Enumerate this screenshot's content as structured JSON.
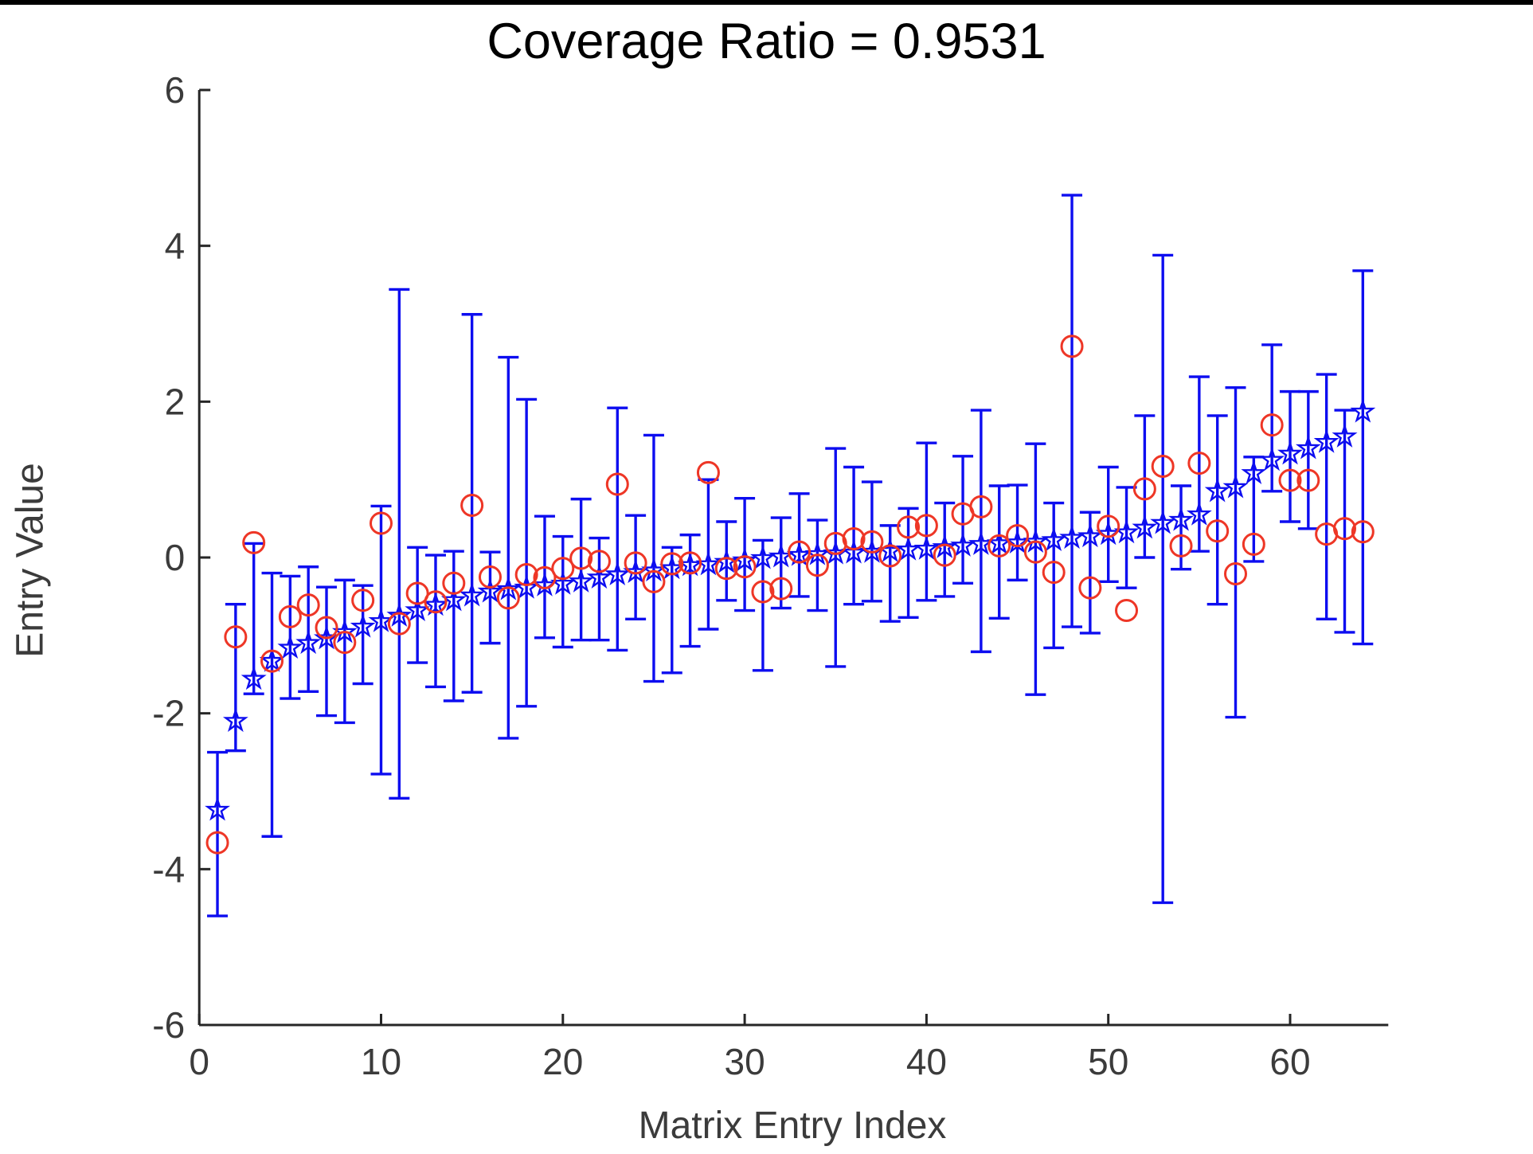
{
  "figure": {
    "title": "Coverage Ratio = 0.9531",
    "coverage_ratio": "0.9531"
  },
  "chart_data": {
    "type": "scatter",
    "subtype": "errorbar-interval-plot",
    "title": "Coverage Ratio = 0.9531",
    "xlabel": "Matrix Entry Index",
    "ylabel": "Entry Value",
    "xlim": [
      0,
      65.4
    ],
    "ylim": [
      -6,
      6
    ],
    "xticks": [
      0,
      10,
      20,
      30,
      40,
      50,
      60
    ],
    "yticks": [
      6,
      4,
      2,
      0,
      -2,
      -4,
      -6
    ],
    "grid": false,
    "legend_position": "none",
    "colors": {
      "interval": "#0d0df0",
      "truth": "#ee3626",
      "axis": "#262626",
      "title": "#000000"
    },
    "series": [
      {
        "name": "sorted-estimates-with-intervals",
        "marker": "pentagram",
        "color": "#0d0df0",
        "x": [
          1,
          2,
          3,
          4,
          5,
          6,
          7,
          8,
          9,
          10,
          11,
          12,
          13,
          14,
          15,
          16,
          17,
          18,
          19,
          20,
          21,
          22,
          23,
          24,
          25,
          26,
          27,
          28,
          29,
          30,
          31,
          32,
          33,
          34,
          35,
          36,
          37,
          38,
          39,
          40,
          41,
          42,
          43,
          44,
          45,
          46,
          47,
          48,
          49,
          50,
          51,
          52,
          53,
          54,
          55,
          56,
          57,
          58,
          59,
          60,
          61,
          62,
          63,
          64
        ],
        "y": [
          -3.24,
          -2.1,
          -1.56,
          -1.33,
          -1.16,
          -1.1,
          -1.04,
          -0.96,
          -0.89,
          -0.82,
          -0.75,
          -0.68,
          -0.61,
          -0.55,
          -0.49,
          -0.44,
          -0.41,
          -0.39,
          -0.36,
          -0.34,
          -0.31,
          -0.26,
          -0.22,
          -0.19,
          -0.17,
          -0.14,
          -0.1,
          -0.09,
          -0.06,
          -0.04,
          -0.01,
          0.01,
          0.03,
          0.04,
          0.05,
          0.06,
          0.07,
          0.08,
          0.1,
          0.11,
          0.13,
          0.15,
          0.17,
          0.18,
          0.19,
          0.2,
          0.22,
          0.25,
          0.27,
          0.3,
          0.32,
          0.38,
          0.44,
          0.48,
          0.55,
          0.85,
          0.9,
          1.08,
          1.25,
          1.33,
          1.4,
          1.48,
          1.55,
          1.87
        ],
        "bar_lower": [
          -4.6,
          -2.48,
          -1.75,
          -3.58,
          -1.81,
          -1.72,
          -2.03,
          -2.12,
          -1.62,
          -2.78,
          -3.09,
          -1.35,
          -1.66,
          -1.84,
          -1.73,
          -1.1,
          -2.32,
          -1.91,
          -1.03,
          -1.15,
          -1.06,
          -1.06,
          -1.19,
          -0.79,
          -1.59,
          -1.48,
          -1.14,
          -0.92,
          -0.55,
          -0.68,
          -1.45,
          -0.65,
          -0.5,
          -0.68,
          -1.4,
          -0.6,
          -0.56,
          -0.82,
          -0.77,
          -0.55,
          -0.5,
          -0.33,
          -1.21,
          -0.78,
          -0.29,
          -1.76,
          -1.16,
          -0.89,
          -0.97,
          -0.31,
          -0.39,
          0.0,
          -4.43,
          -0.15,
          0.08,
          -0.6,
          -2.05,
          -0.05,
          0.85,
          0.46,
          0.37,
          -0.79,
          -0.96,
          -1.11
        ],
        "bar_upper": [
          -2.5,
          -0.6,
          0.18,
          -0.2,
          -0.24,
          -0.12,
          -0.38,
          -0.29,
          -0.36,
          0.66,
          3.44,
          0.13,
          0.03,
          0.08,
          3.12,
          0.07,
          2.57,
          2.03,
          0.53,
          0.27,
          0.75,
          0.25,
          1.92,
          0.54,
          1.57,
          0.13,
          0.29,
          1.0,
          0.46,
          0.76,
          0.22,
          0.51,
          0.82,
          0.48,
          1.4,
          1.16,
          0.97,
          0.41,
          0.63,
          1.47,
          0.7,
          1.3,
          1.89,
          0.92,
          0.93,
          1.46,
          0.7,
          4.65,
          0.58,
          1.16,
          0.9,
          1.82,
          3.88,
          0.92,
          2.32,
          1.82,
          2.18,
          1.29,
          2.73,
          2.13,
          2.13,
          2.35,
          1.89,
          3.68
        ]
      },
      {
        "name": "true-entry-values",
        "marker": "circle",
        "color": "#ee3626",
        "x": [
          1,
          2,
          3,
          4,
          5,
          6,
          7,
          8,
          9,
          10,
          11,
          12,
          13,
          14,
          15,
          16,
          17,
          18,
          19,
          20,
          21,
          22,
          23,
          24,
          25,
          26,
          27,
          28,
          29,
          30,
          31,
          32,
          33,
          34,
          35,
          36,
          37,
          38,
          39,
          40,
          41,
          42,
          43,
          44,
          45,
          46,
          47,
          48,
          49,
          50,
          51,
          52,
          53,
          54,
          55,
          56,
          57,
          58,
          59,
          60,
          61,
          62,
          63,
          64
        ],
        "y": [
          -3.66,
          -1.02,
          0.19,
          -1.33,
          -0.76,
          -0.61,
          -0.9,
          -1.09,
          -0.55,
          0.44,
          -0.85,
          -0.46,
          -0.57,
          -0.33,
          0.67,
          -0.25,
          -0.52,
          -0.22,
          -0.26,
          -0.14,
          -0.01,
          -0.05,
          0.94,
          -0.07,
          -0.31,
          -0.08,
          -0.07,
          1.09,
          -0.14,
          -0.12,
          -0.44,
          -0.4,
          0.07,
          -0.1,
          0.18,
          0.24,
          0.2,
          0.02,
          0.39,
          0.41,
          0.03,
          0.56,
          0.65,
          0.15,
          0.28,
          0.07,
          -0.19,
          2.71,
          -0.39,
          0.4,
          -0.68,
          0.88,
          1.17,
          0.15,
          1.21,
          0.34,
          -0.21,
          0.17,
          1.7,
          0.99,
          0.99,
          0.3,
          0.37,
          0.33
        ]
      }
    ]
  }
}
